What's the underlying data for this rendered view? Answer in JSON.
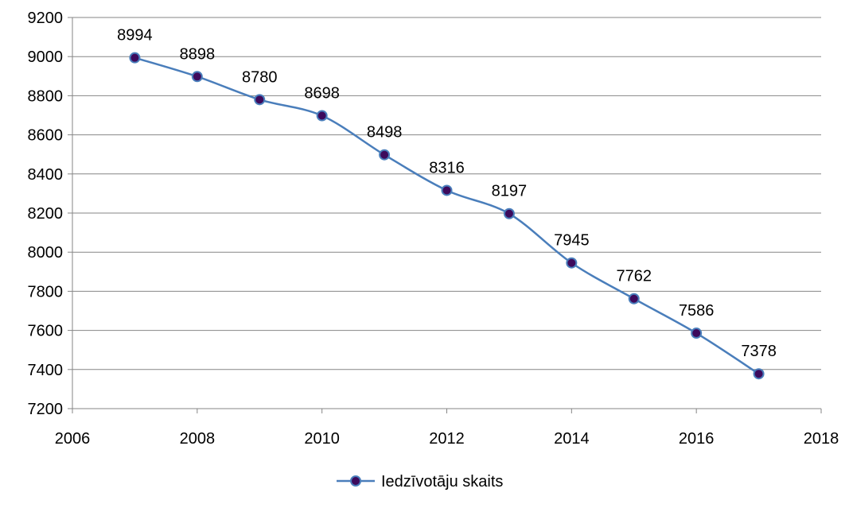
{
  "chart_data": {
    "type": "line",
    "title": "",
    "xlabel": "",
    "ylabel": "",
    "xlim": [
      2006,
      2018
    ],
    "ylim": [
      7200,
      9200
    ],
    "x_ticks": [
      "2006",
      "2008",
      "2010",
      "2012",
      "2014",
      "2016",
      "2018"
    ],
    "y_ticks": [
      "7200",
      "7400",
      "7600",
      "7800",
      "8000",
      "8200",
      "8400",
      "8600",
      "8800",
      "9000",
      "9200"
    ],
    "grid": "horizontal",
    "legend_position": "bottom",
    "series": [
      {
        "name": "Iedzīvotāju skaits",
        "color": "#4a7ebb",
        "marker_color": "#3d0a5c",
        "x": [
          2007,
          2008,
          2009,
          2010,
          2011,
          2012,
          2013,
          2014,
          2015,
          2016,
          2017
        ],
        "values": [
          8994,
          8898,
          8780,
          8698,
          8498,
          8316,
          8197,
          7945,
          7762,
          7586,
          7378
        ],
        "labels": [
          "8994",
          "8898",
          "8780",
          "8698",
          "8498",
          "8316",
          "8197",
          "7945",
          "7762",
          "7586",
          "7378"
        ]
      }
    ]
  }
}
